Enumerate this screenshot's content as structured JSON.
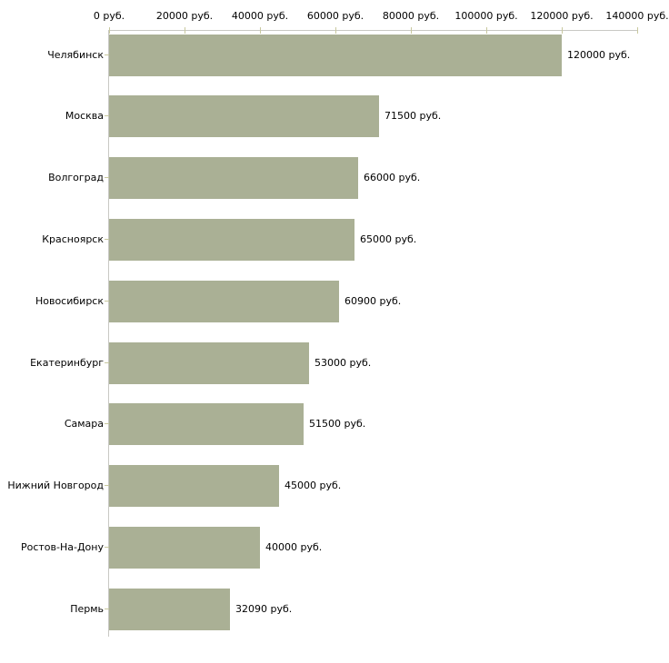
{
  "chart_data": {
    "type": "bar",
    "orientation": "horizontal",
    "title": "",
    "xlabel": "",
    "ylabel": "",
    "categories": [
      "Челябинск",
      "Москва",
      "Волгоград",
      "Красноярск",
      "Новосибирск",
      "Екатеринбург",
      "Самара",
      "Нижний Новгород",
      "Ростов-На-Дону",
      "Пермь"
    ],
    "values": [
      120000,
      71500,
      66000,
      65000,
      60900,
      53000,
      51500,
      45000,
      40000,
      32090
    ],
    "value_labels": [
      "120000 руб.",
      "71500 руб.",
      "66000 руб.",
      "65000 руб.",
      "60900 руб.",
      "53000 руб.",
      "51500 руб.",
      "45000 руб.",
      "40000 руб.",
      "32090 руб."
    ],
    "xlim": [
      0,
      140000
    ],
    "x_ticks": [
      0,
      20000,
      40000,
      60000,
      80000,
      100000,
      120000,
      140000
    ],
    "x_tick_labels": [
      "0 руб.",
      "20000 руб.",
      "40000 руб.",
      "60000 руб.",
      "80000 руб.",
      "100000 руб.",
      "120000 руб.",
      "140000 руб."
    ],
    "axis_position": "top",
    "grid": false,
    "legend": "none",
    "colors": {
      "bar": "#AAB095",
      "axis_line": "#C8C8C4",
      "tick_mark": "#C8C89E",
      "text": "#000000",
      "background": "#FFFFFF"
    }
  }
}
